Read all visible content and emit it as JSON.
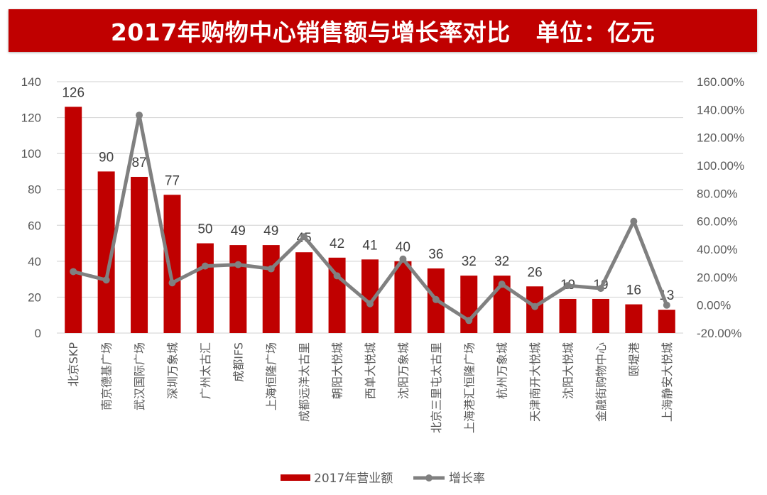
{
  "title": "2017年购物中心销售额与增长率对比   单位：亿元",
  "colors": {
    "title_bg": "#c00000",
    "bar": "#c00000",
    "line": "#808080",
    "grid": "#d9d9d9",
    "text": "#595959"
  },
  "chart_data": {
    "type": "bar+line",
    "title": "2017年购物中心销售额与增长率对比   单位：亿元",
    "categories": [
      "北京SKP",
      "南京德基广场",
      "武汉国际广场",
      "深圳万象城",
      "广州太古汇",
      "成都IFS",
      "上海恒隆广场",
      "成都远洋太古里",
      "朝阳大悦城",
      "西单大悦城",
      "沈阳万象城",
      "北京三里屯太古里",
      "上海港汇恒隆广场",
      "杭州万象城",
      "天津南开大悦城",
      "沈阳大悦城",
      "金融街购物中心",
      "颐堤港",
      "上海静安大悦城"
    ],
    "series": [
      {
        "name": "2017年营业额",
        "type": "bar",
        "axis": "left",
        "values": [
          126,
          90,
          87,
          77,
          50,
          49,
          49,
          45,
          42,
          41,
          40,
          36,
          32,
          32,
          26,
          19,
          19,
          16,
          13
        ],
        "data_labels": [
          "126",
          "90",
          "87",
          "77",
          "50",
          "49",
          "49",
          "45",
          "42",
          "41",
          "40",
          "36",
          "32",
          "32",
          "26",
          "19",
          "19",
          "16",
          "13"
        ]
      },
      {
        "name": "增长率",
        "type": "line",
        "axis": "right",
        "values": [
          24,
          18,
          136,
          16,
          28,
          29,
          26,
          49,
          21,
          1,
          33,
          4,
          -11,
          15,
          -1,
          14,
          12,
          60,
          0
        ]
      }
    ],
    "left_axis": {
      "min": 0,
      "max": 140,
      "step": 20,
      "ticks": [
        "0",
        "20",
        "40",
        "60",
        "80",
        "100",
        "120",
        "140"
      ]
    },
    "right_axis": {
      "min": -20,
      "max": 160,
      "step": 20,
      "ticks": [
        "-20.00%",
        "0.00%",
        "20.00%",
        "40.00%",
        "60.00%",
        "80.00%",
        "100.00%",
        "120.00%",
        "140.00%",
        "160.00%"
      ]
    },
    "grid": true,
    "legend": {
      "position": "bottom",
      "items": [
        "2017年营业额",
        "增长率"
      ]
    }
  }
}
